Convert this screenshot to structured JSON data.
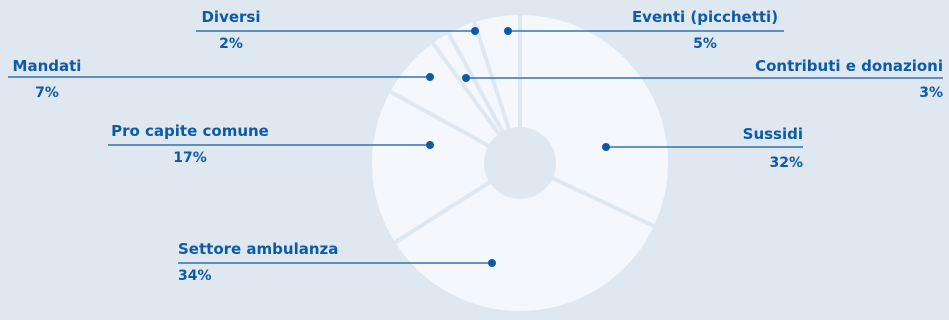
{
  "colors": {
    "background": "#dfe8f1",
    "slice": "#f4f7fb",
    "separator": "#dfe8f1",
    "label": "#0d5aa7"
  },
  "chart_data": {
    "type": "pie",
    "variant": "donut",
    "start_angle_deg": 0,
    "direction": "clockwise",
    "slices": [
      {
        "label": "Sussidi",
        "value": 32,
        "value_label": "32%"
      },
      {
        "label": "Settore ambulanza",
        "value": 34,
        "value_label": "34%"
      },
      {
        "label": "Pro capite comune",
        "value": 17,
        "value_label": "17%"
      },
      {
        "label": "Mandati",
        "value": 7,
        "value_label": "7%"
      },
      {
        "label": "Diversi",
        "value": 2,
        "value_label": "2%"
      },
      {
        "label": "Contributi e donazioni",
        "value": 3,
        "value_label": "3%"
      },
      {
        "label": "Eventi (picchetti)",
        "value": 5,
        "value_label": "5%"
      }
    ]
  }
}
